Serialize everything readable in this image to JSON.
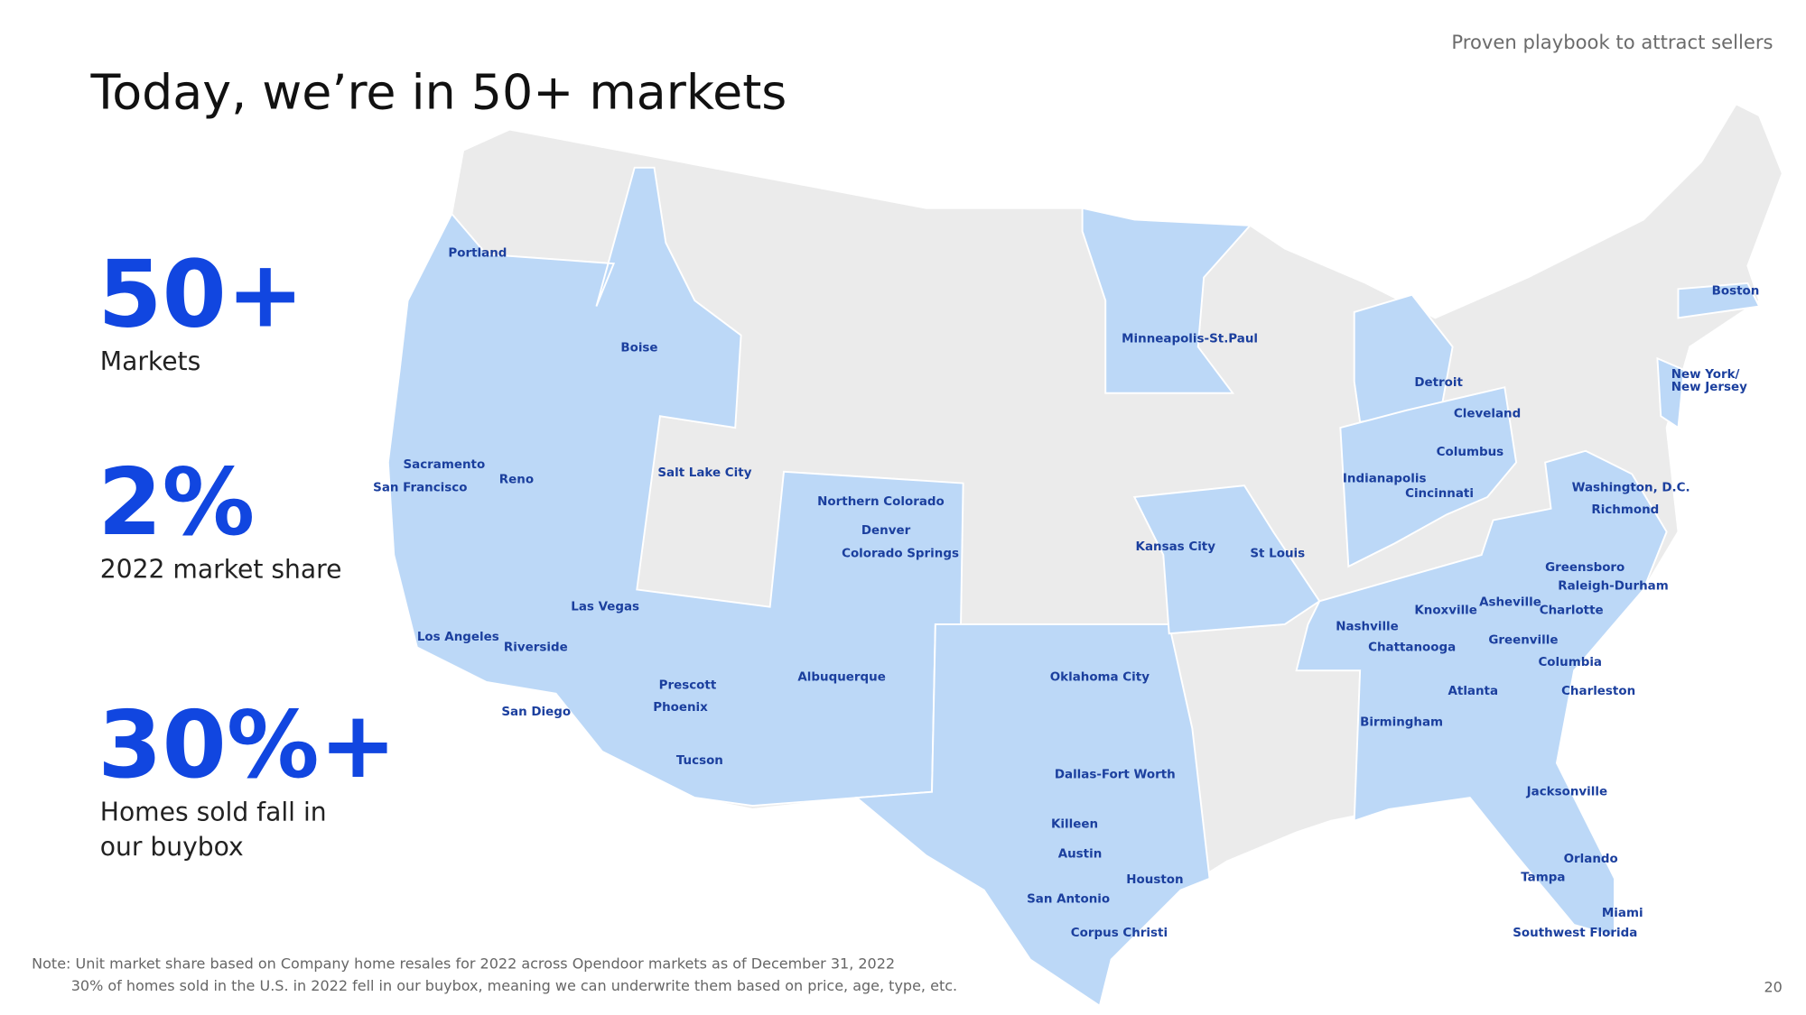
{
  "header": {
    "kicker": "Proven playbook to attract sellers",
    "title": "Today, we’re in 50+ markets"
  },
  "stats": [
    {
      "value": "50+",
      "label_lines": [
        "Markets"
      ]
    },
    {
      "value": "2%",
      "label_lines": [
        "2022 market share"
      ]
    },
    {
      "value": "30%+",
      "label_lines": [
        "Homes sold fall in",
        "our buybox"
      ]
    }
  ],
  "map": {
    "cities": [
      "Portland",
      "Boise",
      "Minneapolis-St.Paul",
      "Detroit",
      "Cleveland",
      "Columbus",
      "Boston",
      "New York/",
      "New Jersey",
      "Sacramento",
      "San Francisco",
      "Reno",
      "Salt Lake City",
      "Northern Colorado",
      "Denver",
      "Colorado Springs",
      "Kansas City",
      "St Louis",
      "Indianapolis",
      "Cincinnati",
      "Washington, D.C.",
      "Richmond",
      "Greensboro",
      "Raleigh-Durham",
      "Asheville",
      "Charlotte",
      "Knoxville",
      "Nashville",
      "Chattanooga",
      "Greenville",
      "Columbia",
      "Atlanta",
      "Charleston",
      "Birmingham",
      "Las Vegas",
      "Los Angeles",
      "Riverside",
      "San Diego",
      "Prescott",
      "Phoenix",
      "Tucson",
      "Albuquerque",
      "Oklahoma City",
      "Dallas-Fort Worth",
      "Killeen",
      "Austin",
      "Houston",
      "San Antonio",
      "Corpus Christi",
      "Jacksonville",
      "Orlando",
      "Tampa",
      "Miami",
      "Southwest Florida"
    ]
  },
  "footer": {
    "notes": [
      "Note: Unit market share based on Company home resales for 2022 across Opendoor markets as of December 31, 2022",
      "30% of homes sold in the U.S. in 2022 fell in our buybox, meaning we can underwrite them based on price, age, type, etc."
    ],
    "page": "20"
  }
}
